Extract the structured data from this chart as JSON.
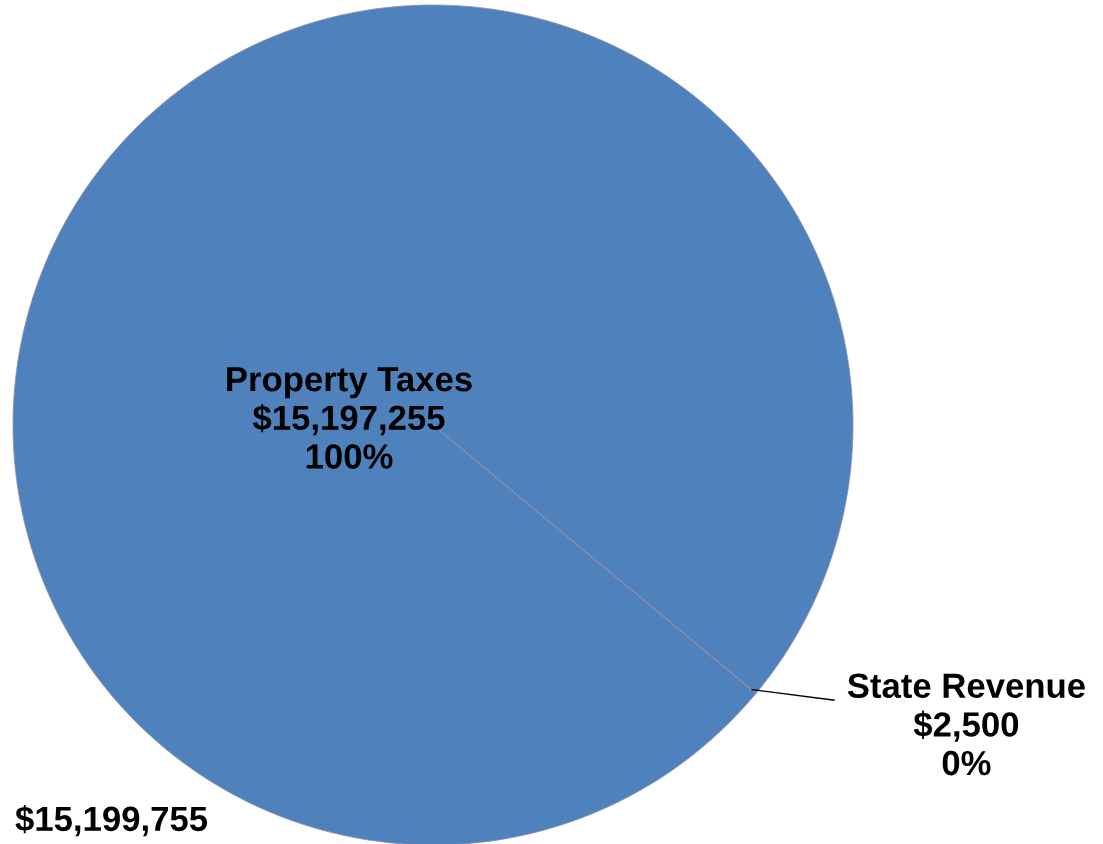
{
  "chart_data": {
    "type": "pie",
    "categories": [
      "Property Taxes",
      "State Revenue"
    ],
    "values": [
      15197255,
      2500
    ],
    "colors": [
      "#4f81bd",
      "#c0504d"
    ],
    "value_labels": [
      "$15,197,255\n100%",
      "$2,500\n0%"
    ],
    "annotations": [
      "$15,199,755"
    ]
  }
}
